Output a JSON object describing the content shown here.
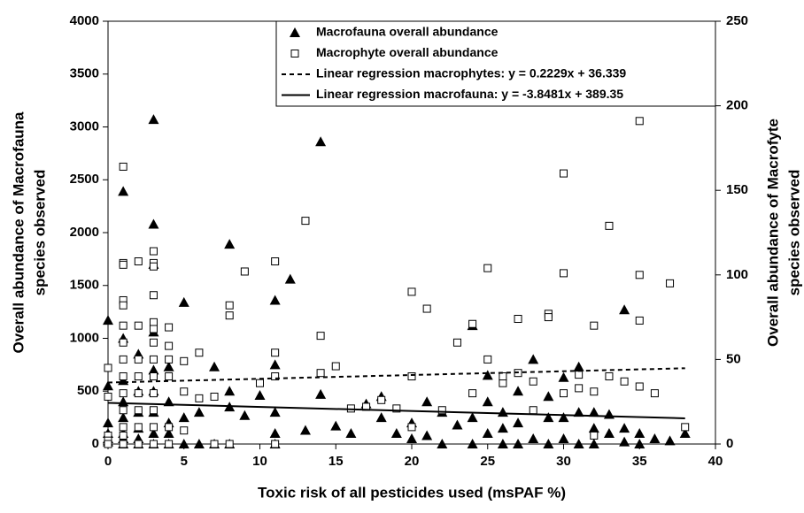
{
  "chart_data": {
    "type": "scatter",
    "xlabel": "Toxic risk of all pesticides used (msPAF %)",
    "ylabel": [
      "Overall abundance of Macrofauna",
      "species observed"
    ],
    "y2label": [
      "Overall abundance of Macrofyte",
      "species observed"
    ],
    "xlim": [
      0,
      40
    ],
    "xticks": [
      0,
      5,
      10,
      15,
      20,
      25,
      30,
      35,
      40
    ],
    "ylim": [
      0,
      4000
    ],
    "yticks": [
      0,
      500,
      1000,
      1500,
      2000,
      2500,
      3000,
      3500,
      4000
    ],
    "y2lim": [
      0,
      250
    ],
    "y2ticks": [
      0,
      50,
      100,
      150,
      200,
      250
    ],
    "grid": false,
    "legend": "top-right",
    "series": [
      {
        "name": "Macrofauna overall abundance",
        "marker": "triangle",
        "color": "#000000",
        "x": [
          0,
          0,
          0,
          0,
          0,
          0,
          1,
          1,
          1,
          1,
          1,
          1,
          1,
          1,
          2,
          2,
          2,
          2,
          2,
          2,
          3,
          3,
          3,
          3,
          3,
          3,
          3,
          3,
          3,
          4,
          4,
          4,
          4,
          4,
          5,
          5,
          5,
          6,
          6,
          7,
          7,
          8,
          8,
          8,
          8,
          9,
          10,
          11,
          11,
          11,
          11,
          11,
          12,
          13,
          14,
          14,
          15,
          16,
          17,
          18,
          18,
          19,
          20,
          20,
          21,
          21,
          22,
          22,
          23,
          24,
          24,
          24,
          25,
          25,
          25,
          26,
          26,
          26,
          27,
          27,
          27,
          28,
          28,
          29,
          29,
          29,
          30,
          30,
          30,
          31,
          31,
          31,
          32,
          32,
          32,
          33,
          33,
          34,
          34,
          34,
          35,
          35,
          36,
          37,
          38
        ],
        "values": [
          1170,
          550,
          200,
          100,
          50,
          20,
          2390,
          1000,
          600,
          400,
          250,
          100,
          50,
          0,
          850,
          500,
          300,
          150,
          50,
          0,
          3070,
          2080,
          1700,
          1060,
          700,
          500,
          300,
          100,
          0,
          730,
          400,
          200,
          100,
          0,
          1340,
          250,
          0,
          300,
          0,
          730,
          0,
          1890,
          500,
          350,
          0,
          270,
          460,
          1360,
          750,
          300,
          100,
          0,
          1560,
          130,
          2860,
          470,
          170,
          100,
          380,
          450,
          250,
          100,
          200,
          50,
          400,
          80,
          300,
          0,
          180,
          1120,
          250,
          0,
          650,
          400,
          100,
          300,
          150,
          0,
          500,
          200,
          0,
          800,
          50,
          450,
          250,
          0,
          630,
          250,
          50,
          730,
          300,
          0,
          300,
          150,
          0,
          280,
          100,
          1270,
          150,
          20,
          100,
          0,
          50,
          30,
          100
        ]
      },
      {
        "name": "Macrophyte overall abundance",
        "marker": "square",
        "color": "#000000",
        "axis": "y2",
        "x": [
          0,
          0,
          0,
          0,
          0,
          1,
          1,
          1,
          1,
          1,
          1,
          1,
          1,
          1,
          1,
          1,
          1,
          1,
          1,
          2,
          2,
          2,
          2,
          2,
          2,
          2,
          2,
          3,
          3,
          3,
          3,
          3,
          3,
          3,
          3,
          3,
          3,
          3,
          3,
          3,
          4,
          4,
          4,
          4,
          4,
          4,
          5,
          5,
          5,
          6,
          6,
          7,
          7,
          8,
          8,
          8,
          9,
          10,
          11,
          11,
          11,
          11,
          13,
          14,
          14,
          15,
          16,
          17,
          18,
          19,
          20,
          20,
          20,
          21,
          22,
          23,
          24,
          24,
          25,
          25,
          26,
          26,
          27,
          27,
          28,
          28,
          29,
          29,
          30,
          30,
          30,
          31,
          31,
          32,
          32,
          32,
          33,
          33,
          34,
          35,
          35,
          35,
          35,
          36,
          37,
          38
        ],
        "values": [
          45,
          28,
          5,
          2,
          0,
          164,
          107,
          106,
          85,
          82,
          70,
          60,
          50,
          40,
          30,
          20,
          10,
          5,
          0,
          108,
          70,
          50,
          40,
          30,
          20,
          10,
          0,
          114,
          107,
          105,
          88,
          72,
          68,
          60,
          50,
          40,
          30,
          20,
          10,
          0,
          69,
          58,
          50,
          40,
          10,
          0,
          49,
          31,
          8,
          54,
          27,
          28,
          0,
          82,
          76,
          0,
          102,
          36,
          108,
          54,
          40,
          0,
          132,
          64,
          42,
          46,
          21,
          22,
          26,
          21,
          90,
          40,
          10,
          80,
          20,
          60,
          71,
          30,
          104,
          50,
          36,
          40,
          74,
          42,
          37,
          20,
          77,
          75,
          160,
          101,
          30,
          41,
          33,
          70,
          31,
          5,
          129,
          40,
          37,
          191,
          100,
          73,
          34,
          30,
          95,
          10
        ]
      },
      {
        "name": "Linear regression macrophytes:  y = 0.2229x + 36.339",
        "kind": "line",
        "dash": true,
        "color": "#000000",
        "axis": "y2",
        "x": [
          0,
          38
        ],
        "values": [
          36.339,
          44.81
        ]
      },
      {
        "name": "Linear regression macrofauna: y = -3.8481x + 389.35",
        "kind": "line",
        "dash": false,
        "color": "#000000",
        "x": [
          0,
          38
        ],
        "values": [
          389.35,
          243.12
        ]
      }
    ]
  }
}
